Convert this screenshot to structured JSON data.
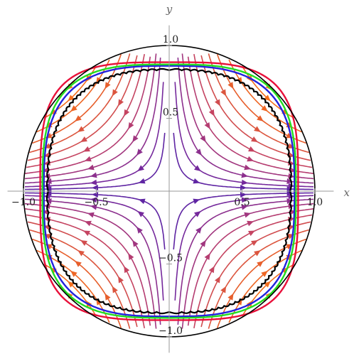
{
  "chart_data": {
    "type": "streamplot",
    "xlabel": "x",
    "ylabel": "y",
    "xlim": [
      -1.08,
      1.08
    ],
    "ylim": [
      -1.08,
      1.08
    ],
    "x_ticks": [
      {
        "value": -1.0,
        "label": "−1.0"
      },
      {
        "value": -0.5,
        "label": "−0.5"
      },
      {
        "value": 0.5,
        "label": "0.5"
      },
      {
        "value": 1.0,
        "label": "1.0"
      }
    ],
    "y_ticks": [
      {
        "value": 1.0,
        "label": "1.0"
      },
      {
        "value": 0.5,
        "label": "0.5"
      },
      {
        "value": -0.5,
        "label": "−0.5"
      },
      {
        "value": -1.0,
        "label": "−1.0"
      }
    ],
    "grid": false,
    "boundary_circle": {
      "radius": 1.0,
      "color": "#000000"
    },
    "vector_field": "saddle at origin: flow toward (0,0) along y, away along x",
    "color_scale": [
      "#3a1fb0",
      "#7a2a9a",
      "#c0406a",
      "#e8602a",
      "#ff7a10"
    ],
    "curves": [
      {
        "color": "#2222dd",
        "style": "solid",
        "shape": "superellipse",
        "radius": 0.86,
        "exponent": 3.0
      },
      {
        "color": "#e8103a",
        "style": "solid",
        "shape": "superellipse",
        "radius": 0.885,
        "exponent": 3.6
      },
      {
        "color": "#22dd22",
        "style": "solid",
        "shape": "superellipse",
        "radius": 0.87,
        "exponent": 3.2
      },
      {
        "color": "#000000",
        "style": "scalloped",
        "shape": "superellipse",
        "radius": 0.83,
        "exponent": 2.6
      }
    ]
  }
}
